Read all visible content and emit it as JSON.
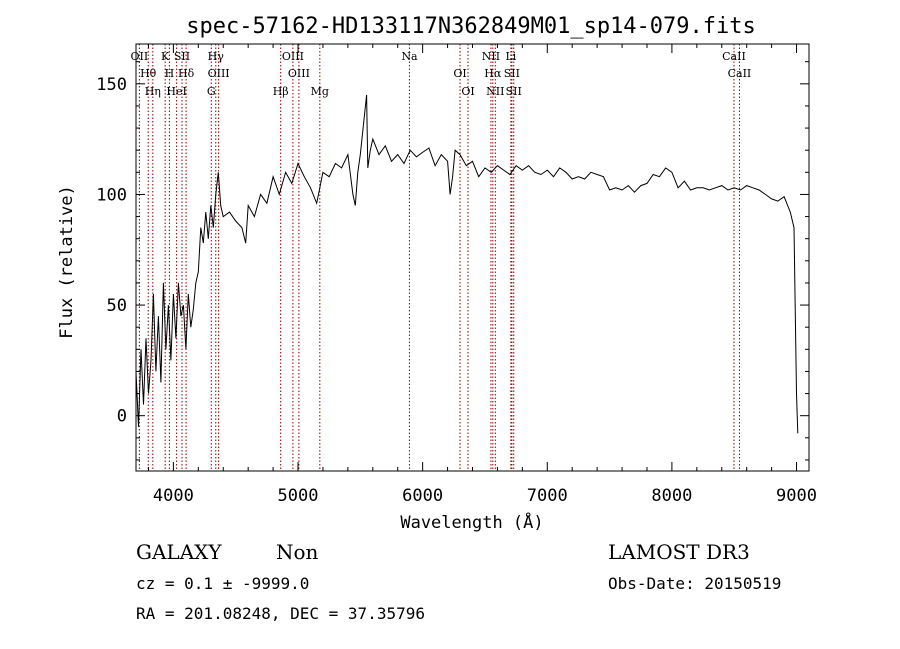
{
  "chart_data": {
    "type": "line",
    "title": "spec-57162-HD133117N362849M01_sp14-079.fits",
    "xlabel": "Wavelength (Å)",
    "ylabel": "Flux (relative)",
    "xlim": [
      3700,
      9100
    ],
    "ylim": [
      -25,
      168
    ],
    "xticks": [
      4000,
      5000,
      6000,
      7000,
      8000,
      9000
    ],
    "yticks": [
      0,
      50,
      100,
      150
    ],
    "grid": false,
    "line_color": "#000000",
    "marker_color": "#8b0000",
    "series": [
      {
        "x": [
          3700,
          3720,
          3740,
          3760,
          3780,
          3800,
          3820,
          3840,
          3860,
          3880,
          3900,
          3920,
          3940,
          3960,
          3980,
          4000,
          4020,
          4040,
          4060,
          4080,
          4100,
          4120,
          4140,
          4160,
          4180,
          4200,
          4220,
          4240,
          4260,
          4280,
          4300,
          4320,
          4340,
          4360,
          4380,
          4400,
          4450,
          4500,
          4550,
          4580,
          4600,
          4650,
          4700,
          4750,
          4800,
          4850,
          4900,
          4950,
          5000,
          5050,
          5100,
          5150,
          5200,
          5250,
          5300,
          5350,
          5400,
          5440,
          5460,
          5480,
          5500,
          5550,
          5560,
          5580,
          5600,
          5650,
          5700,
          5750,
          5800,
          5850,
          5900,
          5950,
          6000,
          6050,
          6100,
          6150,
          6200,
          6220,
          6240,
          6260,
          6300,
          6350,
          6400,
          6450,
          6500,
          6550,
          6600,
          6650,
          6700,
          6750,
          6800,
          6850,
          6900,
          6950,
          7000,
          7050,
          7100,
          7150,
          7200,
          7250,
          7300,
          7350,
          7400,
          7450,
          7500,
          7550,
          7600,
          7650,
          7700,
          7750,
          7800,
          7850,
          7900,
          7950,
          8000,
          8050,
          8100,
          8150,
          8200,
          8250,
          8300,
          8350,
          8400,
          8450,
          8500,
          8550,
          8600,
          8650,
          8700,
          8750,
          8800,
          8850,
          8900,
          8950,
          8980,
          9000,
          9010
        ],
        "y": [
          20,
          -5,
          30,
          5,
          35,
          10,
          25,
          55,
          20,
          45,
          15,
          60,
          30,
          50,
          25,
          55,
          35,
          60,
          45,
          50,
          30,
          55,
          40,
          48,
          60,
          65,
          85,
          78,
          92,
          80,
          95,
          85,
          100,
          110,
          95,
          90,
          92,
          88,
          85,
          78,
          95,
          90,
          100,
          96,
          108,
          100,
          110,
          105,
          114,
          108,
          103,
          96,
          110,
          108,
          114,
          112,
          118,
          100,
          95,
          110,
          118,
          145,
          112,
          120,
          125,
          118,
          122,
          115,
          118,
          114,
          120,
          117,
          119,
          121,
          113,
          118,
          115,
          100,
          108,
          120,
          118,
          113,
          115,
          108,
          112,
          110,
          113,
          111,
          109,
          113,
          111,
          113,
          110,
          109,
          111,
          108,
          112,
          110,
          107,
          108,
          107,
          110,
          109,
          108,
          102,
          103,
          102,
          104,
          101,
          104,
          105,
          109,
          108,
          112,
          110,
          103,
          106,
          102,
          103,
          103,
          102,
          103,
          104,
          102,
          103,
          102,
          104,
          103,
          102,
          100,
          98,
          97,
          99,
          92,
          85,
          10,
          -8
        ]
      }
    ],
    "lines": [
      {
        "label": "OII",
        "x": 3727
      },
      {
        "label": "Hθ",
        "x": 3798
      },
      {
        "label": "Hη",
        "x": 3835
      },
      {
        "label": "K",
        "x": 3934
      },
      {
        "label": "H",
        "x": 3968
      },
      {
        "label": "HeI",
        "x": 4026
      },
      {
        "label": "SII",
        "x": 4069
      },
      {
        "label": "Hδ",
        "x": 4102
      },
      {
        "label": "G",
        "x": 4304
      },
      {
        "label": "Hγ",
        "x": 4340
      },
      {
        "label": "OIII",
        "x": 4363
      },
      {
        "label": "Hβ",
        "x": 4861
      },
      {
        "label": "OIII",
        "x": 4959
      },
      {
        "label": "OIII",
        "x": 5007
      },
      {
        "label": "Mg",
        "x": 5175
      },
      {
        "label": "Na",
        "x": 5894
      },
      {
        "label": "OI",
        "x": 6300
      },
      {
        "label": "OI",
        "x": 6364
      },
      {
        "label": "NII",
        "x": 6548
      },
      {
        "label": "Hα",
        "x": 6563
      },
      {
        "label": "NII",
        "x": 6583
      },
      {
        "label": "Li",
        "x": 6708
      },
      {
        "label": "SII",
        "x": 6716
      },
      {
        "label": "SII",
        "x": 6731
      },
      {
        "label": "CaII",
        "x": 8498
      },
      {
        "label": "CaII",
        "x": 8542
      }
    ]
  },
  "info": {
    "class": "GALAXY",
    "subclass": "Non",
    "cz": "cz = 0.1 ± -9999.0",
    "radec": "RA = 201.08248, DEC =  37.35796",
    "survey": "LAMOST DR3",
    "obsdate": "Obs-Date: 20150519"
  }
}
